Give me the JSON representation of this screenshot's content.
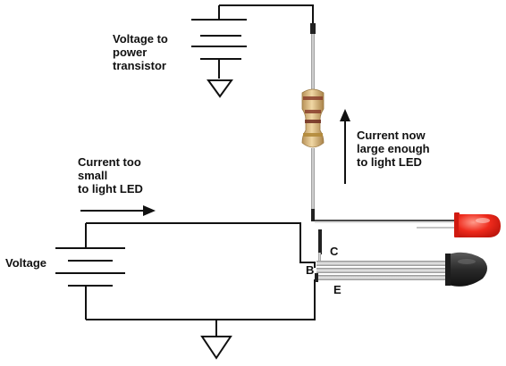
{
  "labels": {
    "voltage_to_power": "Voltage to\npower\ntransistor",
    "current_now": "Current now\nlarge enough\nto light LED",
    "current_small": "Current too\nsmall\nto light LED",
    "voltage": "Voltage"
  },
  "pins": {
    "base": "B",
    "collector": "C",
    "emitter": "E"
  },
  "icons": {
    "battery_top": "battery-icon",
    "battery_bottom": "battery-icon",
    "ground_top": "ground-icon",
    "ground_bottom": "ground-icon",
    "resistor": "resistor-icon",
    "led": "led-icon",
    "transistor": "transistor-icon"
  },
  "colors": {
    "wire": "#111111",
    "led": "#ee2a1c",
    "resistor_body": "#d9b77e",
    "transistor_body": "#3a3a3a",
    "leads": "#b8b8b8"
  }
}
